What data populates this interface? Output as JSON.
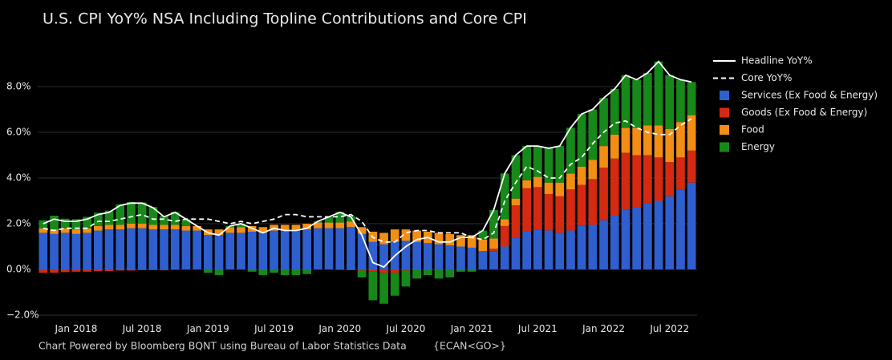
{
  "chart_data": {
    "type": "bar",
    "title": "U.S. CPI YoY% NSA Including Topline Contributions and Core CPI",
    "footer": "Chart Powered by Bloomberg BQNT using Bureau of Labor Statistics Data",
    "footer_code": "{ECAN<GO>}",
    "categories": [
      null,
      null,
      null,
      "Jan 2018",
      null,
      null,
      null,
      null,
      null,
      "Jul 2018",
      null,
      null,
      null,
      null,
      null,
      "Jan 2019",
      null,
      null,
      null,
      null,
      null,
      "Jul 2019",
      null,
      null,
      null,
      null,
      null,
      "Jan 2020",
      null,
      null,
      null,
      null,
      null,
      "Jul 2020",
      null,
      null,
      null,
      null,
      null,
      "Jan 2021",
      null,
      null,
      null,
      null,
      null,
      "Jul 2021",
      null,
      null,
      null,
      null,
      null,
      "Jan 2022",
      null,
      null,
      null,
      null,
      null,
      "Jul 2022",
      null,
      null
    ],
    "series": [
      {
        "name": "Headline YoY%",
        "type": "line",
        "color": "#ffffff",
        "dashed": false,
        "values": [
          2.0,
          2.2,
          2.1,
          2.1,
          2.2,
          2.4,
          2.5,
          2.8,
          2.9,
          2.9,
          2.7,
          2.3,
          2.5,
          2.2,
          1.9,
          1.6,
          1.5,
          1.9,
          2.0,
          1.8,
          1.6,
          1.8,
          1.7,
          1.7,
          1.8,
          2.1,
          2.3,
          2.5,
          2.3,
          1.5,
          0.3,
          0.1,
          0.6,
          1.0,
          1.3,
          1.4,
          1.2,
          1.2,
          1.4,
          1.4,
          1.7,
          2.6,
          4.2,
          5.0,
          5.4,
          5.4,
          5.3,
          5.4,
          6.2,
          6.8,
          7.0,
          7.5,
          7.9,
          8.5,
          8.3,
          8.6,
          9.1,
          8.5,
          8.3,
          8.2
        ]
      },
      {
        "name": "Core YoY%",
        "type": "line",
        "color": "#ffffff",
        "dashed": true,
        "values": [
          1.8,
          1.7,
          1.8,
          1.8,
          1.8,
          2.1,
          2.1,
          2.2,
          2.3,
          2.4,
          2.2,
          2.2,
          2.1,
          2.2,
          2.2,
          2.2,
          2.1,
          2.0,
          2.1,
          2.0,
          2.1,
          2.2,
          2.4,
          2.4,
          2.3,
          2.3,
          2.3,
          2.3,
          2.4,
          2.1,
          1.4,
          1.2,
          1.2,
          1.6,
          1.7,
          1.7,
          1.6,
          1.6,
          1.6,
          1.4,
          1.3,
          1.6,
          3.0,
          3.8,
          4.5,
          4.3,
          4.0,
          4.0,
          4.6,
          4.9,
          5.5,
          6.0,
          6.4,
          6.5,
          6.2,
          6.0,
          5.9,
          5.9,
          6.3,
          6.6
        ]
      },
      {
        "name": "Services (Ex Food & Energy)",
        "type": "bar",
        "color": "#2f5fcf",
        "values": [
          1.6,
          1.55,
          1.6,
          1.55,
          1.6,
          1.7,
          1.75,
          1.75,
          1.8,
          1.8,
          1.75,
          1.75,
          1.75,
          1.7,
          1.7,
          1.5,
          1.5,
          1.6,
          1.6,
          1.65,
          1.6,
          1.7,
          1.7,
          1.7,
          1.75,
          1.8,
          1.8,
          1.8,
          1.85,
          1.55,
          1.2,
          1.1,
          1.2,
          1.25,
          1.2,
          1.15,
          1.1,
          1.05,
          1.0,
          0.95,
          0.8,
          0.8,
          1.0,
          1.4,
          1.65,
          1.75,
          1.7,
          1.6,
          1.7,
          1.9,
          1.95,
          2.15,
          2.35,
          2.6,
          2.7,
          2.9,
          3.0,
          3.2,
          3.5,
          3.8
        ]
      },
      {
        "name": "Goods (Ex Food & Energy)",
        "type": "bar",
        "color": "#d42a12",
        "values": [
          -0.15,
          -0.15,
          -0.12,
          -0.1,
          -0.1,
          -0.08,
          -0.07,
          -0.05,
          -0.05,
          -0.03,
          -0.03,
          -0.04,
          -0.02,
          0.0,
          0.0,
          0.0,
          0.0,
          0.0,
          0.0,
          0.0,
          0.0,
          0.0,
          0.0,
          0.0,
          0.0,
          0.0,
          0.0,
          -0.02,
          -0.03,
          -0.05,
          -0.1,
          -0.15,
          -0.15,
          -0.05,
          0.0,
          0.0,
          0.0,
          0.0,
          0.0,
          0.0,
          0.0,
          0.1,
          0.9,
          1.4,
          1.9,
          1.85,
          1.6,
          1.6,
          1.8,
          1.8,
          2.0,
          2.3,
          2.5,
          2.5,
          2.3,
          2.1,
          1.9,
          1.5,
          1.4,
          1.4
        ]
      },
      {
        "name": "Food",
        "type": "bar",
        "color": "#f28e14",
        "values": [
          0.2,
          0.2,
          0.2,
          0.2,
          0.2,
          0.2,
          0.2,
          0.2,
          0.2,
          0.2,
          0.2,
          0.2,
          0.2,
          0.2,
          0.2,
          0.25,
          0.25,
          0.25,
          0.25,
          0.25,
          0.25,
          0.25,
          0.25,
          0.25,
          0.25,
          0.25,
          0.25,
          0.25,
          0.25,
          0.3,
          0.45,
          0.5,
          0.55,
          0.5,
          0.5,
          0.5,
          0.5,
          0.5,
          0.5,
          0.55,
          0.5,
          0.45,
          0.3,
          0.3,
          0.35,
          0.45,
          0.5,
          0.6,
          0.7,
          0.8,
          0.85,
          0.95,
          1.05,
          1.1,
          1.2,
          1.3,
          1.4,
          1.45,
          1.55,
          1.55
        ]
      },
      {
        "name": "Energy",
        "type": "bar",
        "color": "#17891a",
        "values": [
          0.35,
          0.6,
          0.42,
          0.45,
          0.5,
          0.58,
          0.62,
          0.9,
          0.95,
          0.93,
          0.78,
          0.39,
          0.57,
          0.3,
          0.0,
          -0.15,
          -0.25,
          0.05,
          0.15,
          -0.1,
          -0.25,
          -0.15,
          -0.25,
          -0.25,
          -0.2,
          0.05,
          0.25,
          0.47,
          0.23,
          -0.3,
          -1.25,
          -1.35,
          -1.0,
          -0.7,
          -0.4,
          -0.25,
          -0.4,
          -0.35,
          -0.1,
          -0.1,
          0.4,
          1.25,
          2.0,
          1.9,
          1.5,
          1.35,
          1.5,
          1.6,
          2.0,
          2.3,
          2.2,
          2.1,
          2.0,
          2.3,
          2.1,
          2.3,
          2.8,
          2.35,
          1.85,
          1.45
        ]
      }
    ],
    "ylim": [
      -2.2,
      9.8
    ],
    "yticks": [
      {
        "value": -2,
        "label": "−2.0%"
      },
      {
        "value": 0,
        "label": "0.0%"
      },
      {
        "value": 2,
        "label": "2.0%"
      },
      {
        "value": 4,
        "label": "4.0%"
      },
      {
        "value": 6,
        "label": "6.0%"
      },
      {
        "value": 8,
        "label": "8.0%"
      }
    ],
    "grid": true,
    "legend": "right"
  }
}
